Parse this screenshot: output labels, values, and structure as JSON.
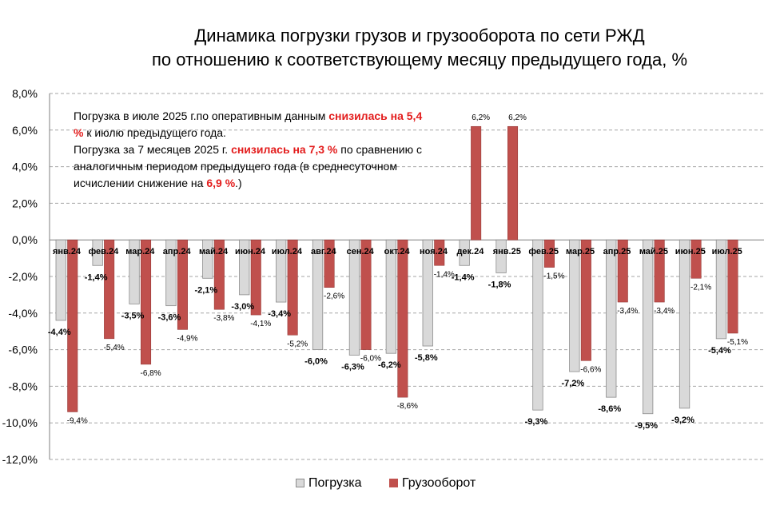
{
  "title": {
    "line1": "Динамика  погрузки грузов и грузооборота по сети РЖД",
    "line2": "по отношению к соответствующему месяцу предыдущего года, %"
  },
  "note": {
    "p1_a": "Погрузка в июле 2025 г.по оперативным данным ",
    "p1_b": "снизилась на 5,4 %",
    "p1_c": " к июлю предыдущего года.",
    "p2_a": "Погрузка за 7 месяцев 2025 г. ",
    "p2_b": "снизилась на 7,3 %",
    "p2_c": " по сравнению с аналогичным периодом предыдущего года (в среднесуточном исчислении снижение на ",
    "p2_d": "6,9 %",
    "p2_e": ".)"
  },
  "colors": {
    "loading": "#d9d9d9",
    "loading_stroke": "#8c8c8c",
    "turnover": "#c0504d",
    "turnover_stroke": "#8c2f2d",
    "accent_red": "#e31d1d",
    "grid": "#a6a6a6"
  },
  "legend": {
    "loading": "Погрузка",
    "turnover": "Грузооборот"
  },
  "chart_data": {
    "type": "bar",
    "title": "Динамика  погрузки грузов и грузооборота по сети РЖД по отношению к соответствующему месяцу предыдущего года, %",
    "xlabel": "",
    "ylabel": "",
    "ylim": [
      -12,
      8
    ],
    "yticks": [
      8,
      6,
      4,
      2,
      0,
      -2,
      -4,
      -6,
      -8,
      -10,
      -12
    ],
    "ytick_labels": [
      "8,0%",
      "6,0%",
      "4,0%",
      "2,0%",
      "0,0%",
      "-2,0%",
      "-4,0%",
      "-6,0%",
      "-8,0%",
      "-10,0%",
      "-12,0%"
    ],
    "grid": true,
    "legend_position": "bottom",
    "categories": [
      "янв.24",
      "фев.24",
      "мар.24",
      "апр.24",
      "май.24",
      "июн.24",
      "июл.24",
      "авг.24",
      "сен.24",
      "окт.24",
      "ноя.24",
      "дек.24",
      "янв.25",
      "фев.25",
      "мар.25",
      "апр.25",
      "май.25",
      "июн.25",
      "июл.25"
    ],
    "series": [
      {
        "name": "Погрузка",
        "values": [
          -4.4,
          -1.4,
          -3.5,
          -3.6,
          -2.1,
          -3.0,
          -3.4,
          -6.0,
          -6.3,
          -6.2,
          -5.8,
          -1.4,
          -1.8,
          -9.3,
          -7.2,
          -8.6,
          -9.5,
          -9.2,
          -5.4
        ],
        "labels": [
          "-4,4%",
          "-1,4%",
          "-3,5%",
          "-3,6%",
          "-2,1%",
          "-3,0%",
          "-3,4%",
          "-6,0%",
          "-6,3%",
          "-6,2%",
          "-5,8%",
          "-1,4%",
          "-1,8%",
          "-9,3%",
          "-7,2%",
          "-8,6%",
          "-9,5%",
          "-9,2%",
          "-5,4%"
        ]
      },
      {
        "name": "Грузооборот",
        "values": [
          -9.4,
          -5.4,
          -6.8,
          -4.9,
          -3.8,
          -4.1,
          -5.2,
          -2.6,
          -6.0,
          -8.6,
          -1.4,
          6.2,
          6.2,
          -1.5,
          -6.6,
          -3.4,
          -3.4,
          -2.1,
          -5.1
        ],
        "labels": [
          "-9,4%",
          "-5,4%",
          "-6,8%",
          "-4,9%",
          "-3,8%",
          "-4,1%",
          "-5,2%",
          "-2,6%",
          "-6,0%",
          "-8,6%",
          "-1,4%",
          "6,2%",
          "6,2%",
          "-1,5%",
          "-6,6%",
          "-3,4%",
          "-3,4%",
          "-2,1%",
          "-5,1%"
        ]
      }
    ]
  }
}
